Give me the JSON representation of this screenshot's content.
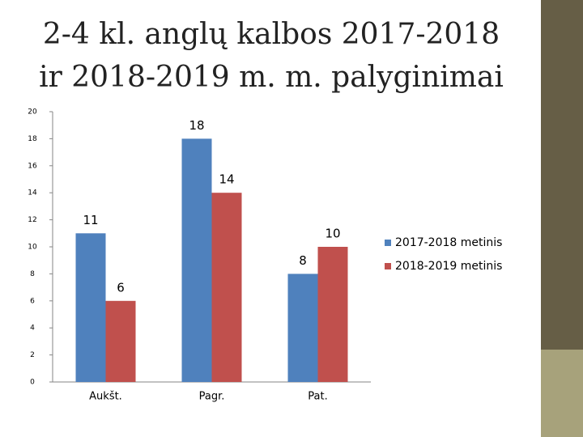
{
  "chart_data": {
    "type": "bar",
    "title": [
      "2-4 kl. anglų kalbos 2017-2018",
      "ir 2018-2019 m. m. palyginimai"
    ],
    "categories": [
      "Aukšt.",
      "Pagr.",
      "Pat."
    ],
    "series": [
      {
        "name": "2017-2018 metinis",
        "color": "#4f81bd",
        "values": [
          11,
          18,
          8
        ]
      },
      {
        "name": "2018-2019 metinis",
        "color": "#c0504d",
        "values": [
          6,
          14,
          10
        ]
      }
    ],
    "ylim": [
      0,
      20
    ],
    "yticks": [
      0,
      2,
      4,
      6,
      8,
      10,
      12,
      14,
      16,
      18,
      20
    ],
    "grid": false,
    "legend": "right"
  }
}
